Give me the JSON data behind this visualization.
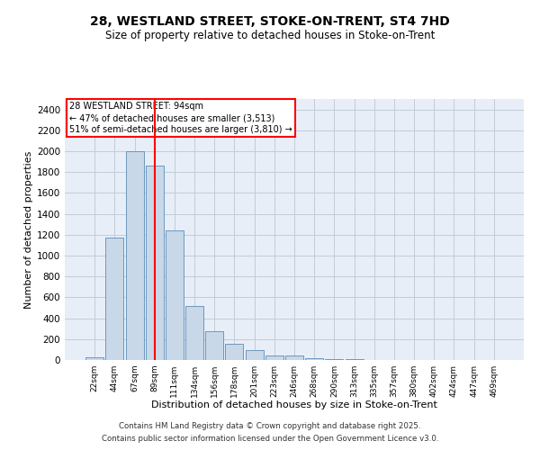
{
  "title_line1": "28, WESTLAND STREET, STOKE-ON-TRENT, ST4 7HD",
  "title_line2": "Size of property relative to detached houses in Stoke-on-Trent",
  "xlabel": "Distribution of detached houses by size in Stoke-on-Trent",
  "ylabel": "Number of detached properties",
  "bar_values": [
    25,
    1170,
    2000,
    1860,
    1240,
    520,
    275,
    155,
    95,
    45,
    40,
    20,
    10,
    5,
    3,
    2,
    2,
    2,
    2,
    0,
    0
  ],
  "bar_labels": [
    "22sqm",
    "44sqm",
    "67sqm",
    "89sqm",
    "111sqm",
    "134sqm",
    "156sqm",
    "178sqm",
    "201sqm",
    "223sqm",
    "246sqm",
    "268sqm",
    "290sqm",
    "313sqm",
    "335sqm",
    "357sqm",
    "380sqm",
    "402sqm",
    "424sqm",
    "447sqm",
    "469sqm"
  ],
  "bar_color": "#c8d8e8",
  "bar_edgecolor": "#5b8db8",
  "vline_x": 3,
  "vline_color": "red",
  "annotation_text": "28 WESTLAND STREET: 94sqm\n← 47% of detached houses are smaller (3,513)\n51% of semi-detached houses are larger (3,810) →",
  "annotation_box_color": "white",
  "annotation_box_edgecolor": "red",
  "ylim": [
    0,
    2500
  ],
  "yticks": [
    0,
    200,
    400,
    600,
    800,
    1000,
    1200,
    1400,
    1600,
    1800,
    2000,
    2200,
    2400
  ],
  "grid_color": "#c0ccd8",
  "bg_color": "#e8eef8",
  "footer_line1": "Contains HM Land Registry data © Crown copyright and database right 2025.",
  "footer_line2": "Contains public sector information licensed under the Open Government Licence v3.0."
}
